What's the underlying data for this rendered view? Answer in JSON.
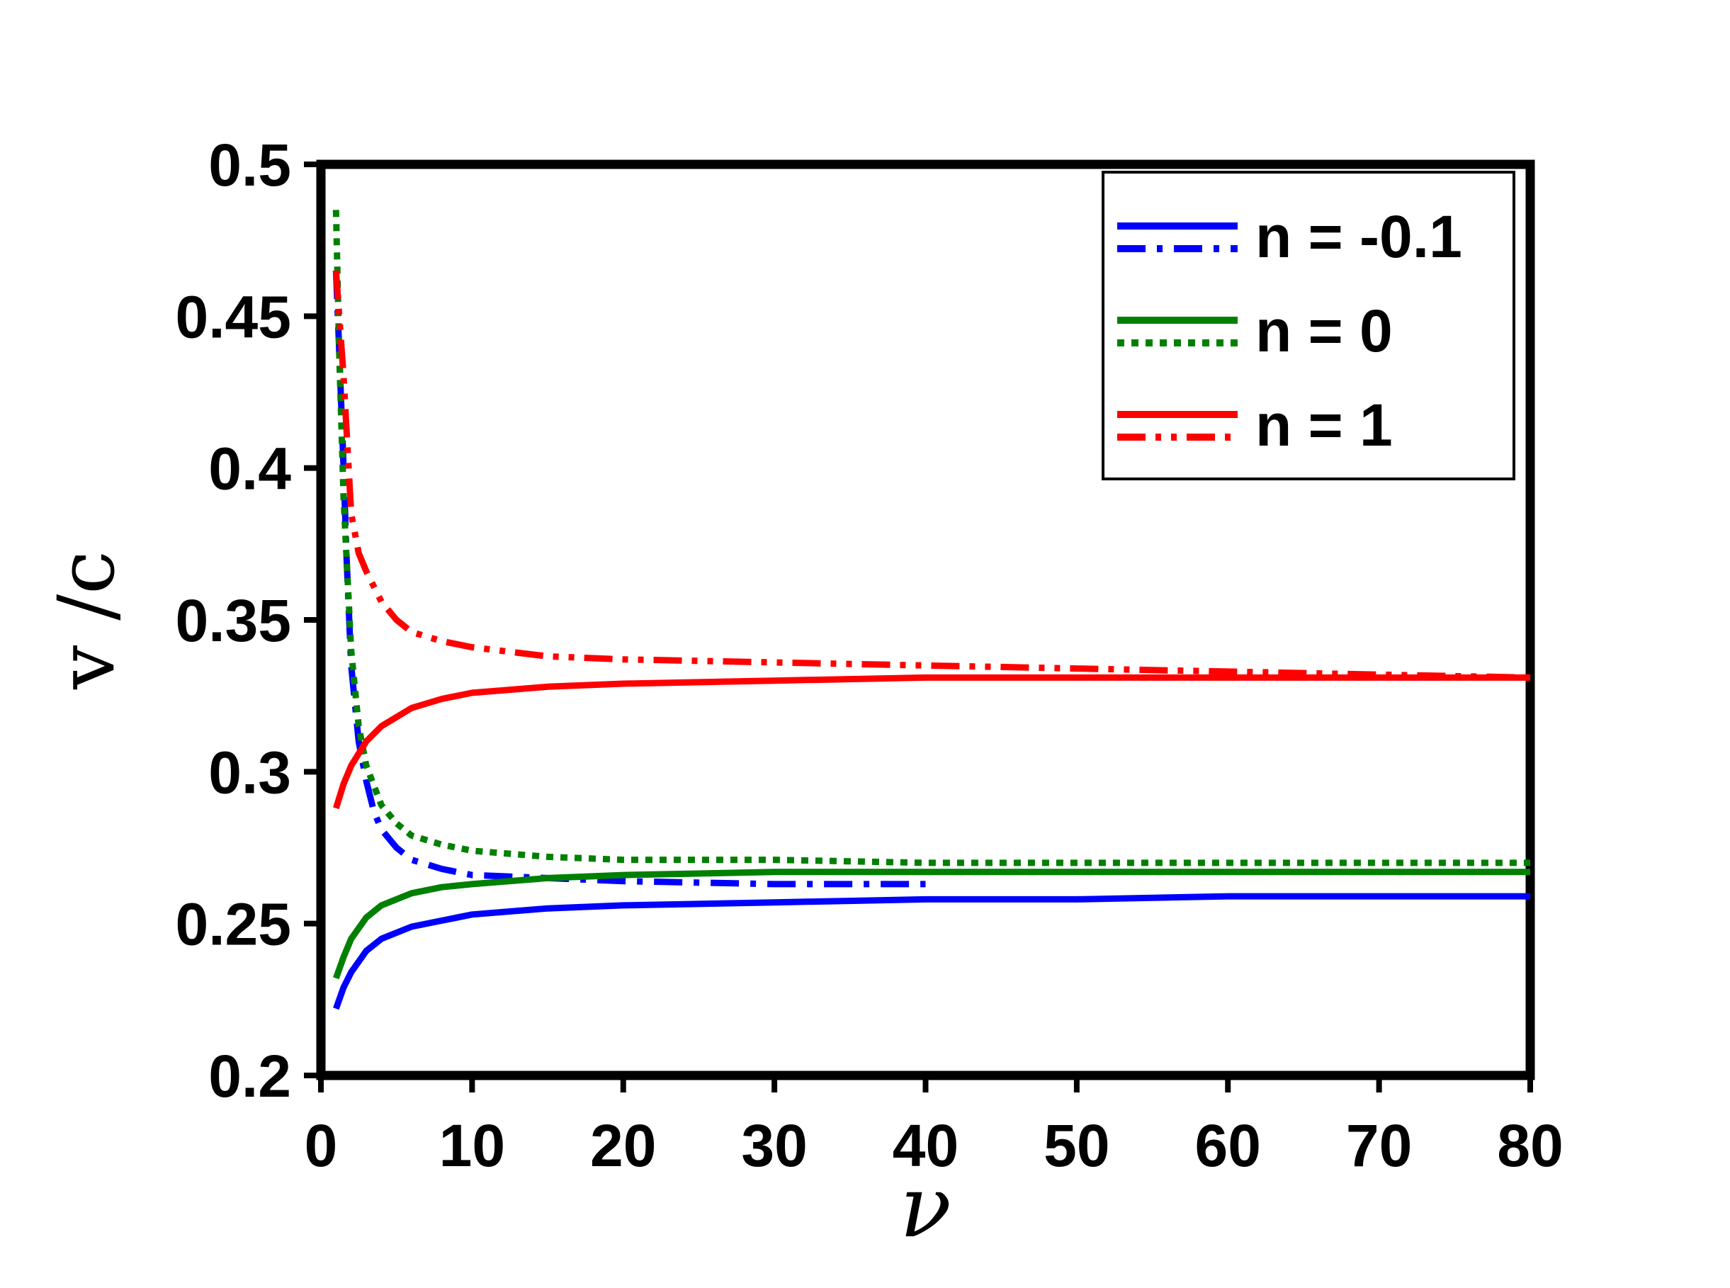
{
  "chart_data": {
    "type": "line",
    "xlabel": "ν",
    "ylabel": "v /c",
    "xlim": [
      0,
      80
    ],
    "ylim": [
      0.2,
      0.5
    ],
    "xticks": [
      0,
      10,
      20,
      30,
      40,
      50,
      60,
      70,
      80
    ],
    "xtick_labels": [
      "0",
      "10",
      "20",
      "30",
      "40",
      "50",
      "60",
      "70",
      "80"
    ],
    "yticks": [
      0.2,
      0.25,
      0.3,
      0.35,
      0.4,
      0.45,
      0.5
    ],
    "ytick_labels": [
      "0.2",
      "0.25",
      "0.3",
      "0.35",
      "0.4",
      "0.45",
      "0.5"
    ],
    "grid": false,
    "legend": {
      "placement": "top-right",
      "entries": [
        {
          "label": "n = -0.1",
          "color": "#0000ff",
          "styles": [
            "solid",
            "dash-dot"
          ]
        },
        {
          "label": "n = 0",
          "color": "#008000",
          "styles": [
            "solid",
            "dotted"
          ]
        },
        {
          "label": "n = 1",
          "color": "#ff0000",
          "styles": [
            "solid",
            "dash-dot-dot"
          ]
        }
      ]
    },
    "series": [
      {
        "color": "#0000ff",
        "dash": "solid",
        "group": "n = -0.1",
        "x": [
          1,
          1.5,
          2,
          3,
          4,
          6,
          8,
          10,
          15,
          20,
          30,
          40,
          50,
          60,
          70,
          80
        ],
        "y": [
          0.222,
          0.229,
          0.234,
          0.241,
          0.245,
          0.249,
          0.251,
          0.253,
          0.255,
          0.256,
          0.257,
          0.258,
          0.258,
          0.259,
          0.259,
          0.259
        ]
      },
      {
        "color": "#0000ff",
        "dash": "dash-dot",
        "group": "n = -0.1",
        "x": [
          1,
          1.2,
          1.5,
          1.7,
          2,
          2.5,
          3,
          3.5,
          4,
          5,
          6,
          8,
          10,
          15,
          20,
          30,
          40
        ],
        "y": [
          0.465,
          0.44,
          0.4,
          0.37,
          0.335,
          0.31,
          0.297,
          0.287,
          0.281,
          0.275,
          0.271,
          0.268,
          0.266,
          0.265,
          0.264,
          0.263,
          0.263
        ]
      },
      {
        "color": "#008000",
        "dash": "solid",
        "group": "n = 0",
        "x": [
          1,
          1.5,
          2,
          3,
          4,
          6,
          8,
          10,
          15,
          20,
          30,
          40,
          50,
          60,
          70,
          80
        ],
        "y": [
          0.232,
          0.239,
          0.245,
          0.252,
          0.256,
          0.26,
          0.262,
          0.263,
          0.265,
          0.266,
          0.267,
          0.267,
          0.267,
          0.267,
          0.267,
          0.267
        ]
      },
      {
        "color": "#008000",
        "dash": "dotted",
        "group": "n = 0",
        "x": [
          1,
          1.2,
          1.5,
          2,
          2.5,
          3,
          4,
          5,
          6,
          8,
          10,
          15,
          20,
          30,
          40,
          50,
          60,
          70,
          80
        ],
        "y": [
          0.485,
          0.44,
          0.39,
          0.34,
          0.315,
          0.302,
          0.289,
          0.283,
          0.279,
          0.276,
          0.274,
          0.272,
          0.271,
          0.271,
          0.27,
          0.27,
          0.27,
          0.27,
          0.27
        ]
      },
      {
        "color": "#ff0000",
        "dash": "solid",
        "group": "n = 1",
        "x": [
          1,
          1.5,
          2,
          3,
          4,
          6,
          8,
          10,
          15,
          20,
          30,
          40,
          50,
          60,
          70,
          80
        ],
        "y": [
          0.288,
          0.296,
          0.302,
          0.31,
          0.315,
          0.321,
          0.324,
          0.326,
          0.328,
          0.329,
          0.33,
          0.331,
          0.331,
          0.331,
          0.331,
          0.331
        ]
      },
      {
        "color": "#ff0000",
        "dash": "dash-dot-dot",
        "group": "n = 1",
        "x": [
          1,
          1.5,
          2,
          2.5,
          3,
          4,
          5,
          6,
          8,
          10,
          15,
          20,
          30,
          40,
          50,
          60,
          70,
          80
        ],
        "y": [
          0.465,
          0.43,
          0.385,
          0.372,
          0.366,
          0.356,
          0.35,
          0.346,
          0.343,
          0.341,
          0.338,
          0.337,
          0.336,
          0.335,
          0.334,
          0.333,
          0.332,
          0.331
        ]
      }
    ]
  }
}
